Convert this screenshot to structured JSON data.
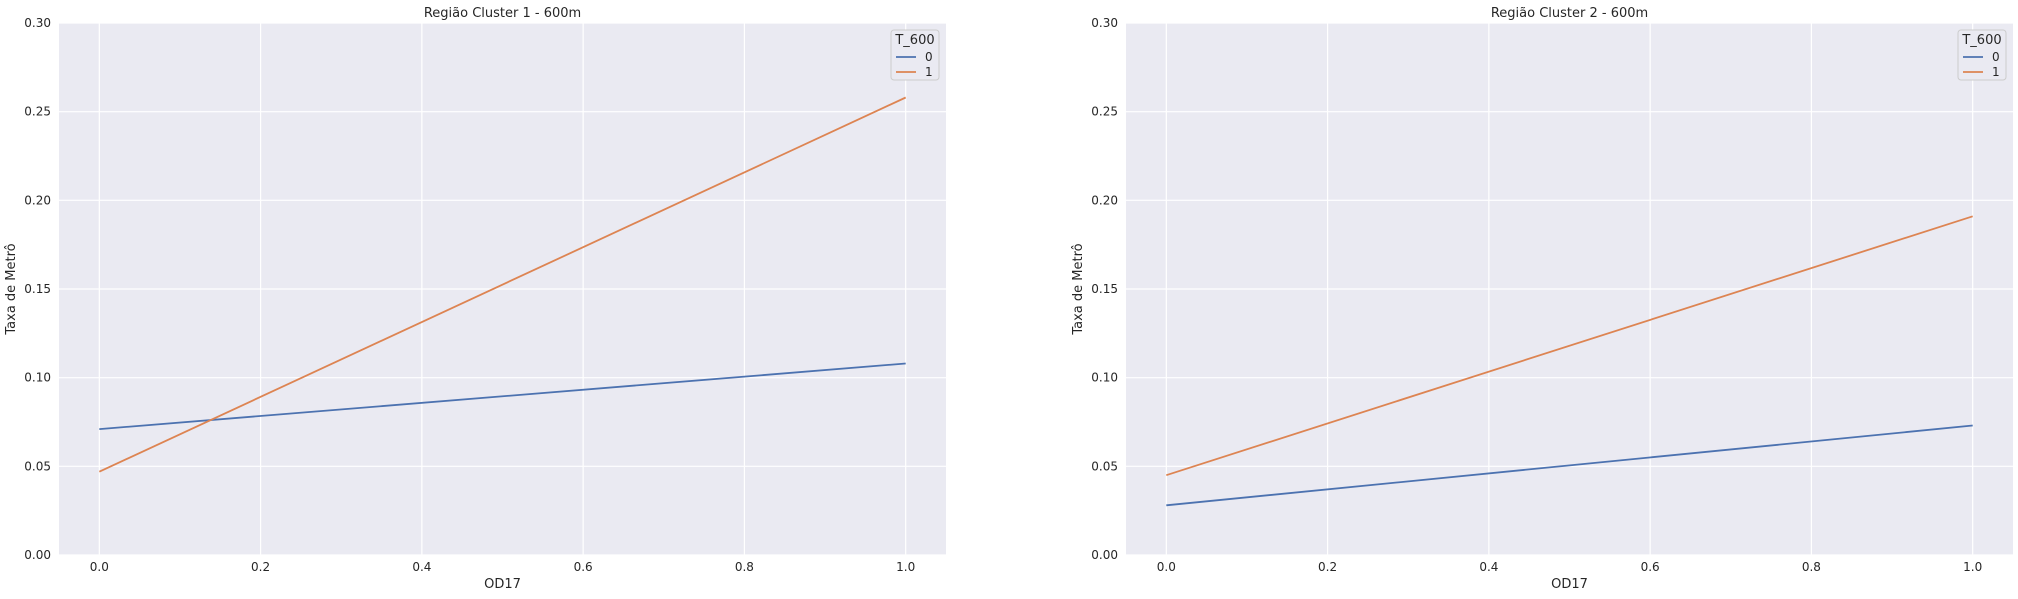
{
  "chart_data": [
    {
      "type": "line",
      "title": "Região Cluster 1 - 600m",
      "xlabel": "OD17",
      "ylabel": "Taxa de Metrô",
      "xlim": [
        -0.05,
        1.05
      ],
      "ylim": [
        0.0,
        0.3
      ],
      "x_ticks": [
        "0.0",
        "0.2",
        "0.4",
        "0.6",
        "0.8",
        "1.0"
      ],
      "y_ticks": [
        "0.00",
        "0.05",
        "0.10",
        "0.15",
        "0.20",
        "0.25",
        "0.30"
      ],
      "grid": true,
      "legend": {
        "title": "T_600",
        "placement": "top-right"
      },
      "series": [
        {
          "name": "0",
          "color": "#4c72b0",
          "x": [
            0.0,
            1.0
          ],
          "y": [
            0.071,
            0.108
          ]
        },
        {
          "name": "1",
          "color": "#dd8452",
          "x": [
            0.0,
            1.0
          ],
          "y": [
            0.047,
            0.258
          ]
        }
      ]
    },
    {
      "type": "line",
      "title": "Região Cluster 2 - 600m",
      "xlabel": "OD17",
      "ylabel": "Taxa de Metrô",
      "xlim": [
        -0.05,
        1.05
      ],
      "ylim": [
        0.0,
        0.3
      ],
      "x_ticks": [
        "0.0",
        "0.2",
        "0.4",
        "0.6",
        "0.8",
        "1.0"
      ],
      "y_ticks": [
        "0.00",
        "0.05",
        "0.10",
        "0.15",
        "0.20",
        "0.25",
        "0.30"
      ],
      "grid": true,
      "legend": {
        "title": "T_600",
        "placement": "top-right"
      },
      "series": [
        {
          "name": "0",
          "color": "#4c72b0",
          "x": [
            0.0,
            1.0
          ],
          "y": [
            0.028,
            0.073
          ]
        },
        {
          "name": "1",
          "color": "#dd8452",
          "x": [
            0.0,
            1.0
          ],
          "y": [
            0.045,
            0.191
          ]
        }
      ]
    }
  ],
  "style": {
    "plot_background": "#eaeaf2",
    "grid_color": "#ffffff"
  }
}
